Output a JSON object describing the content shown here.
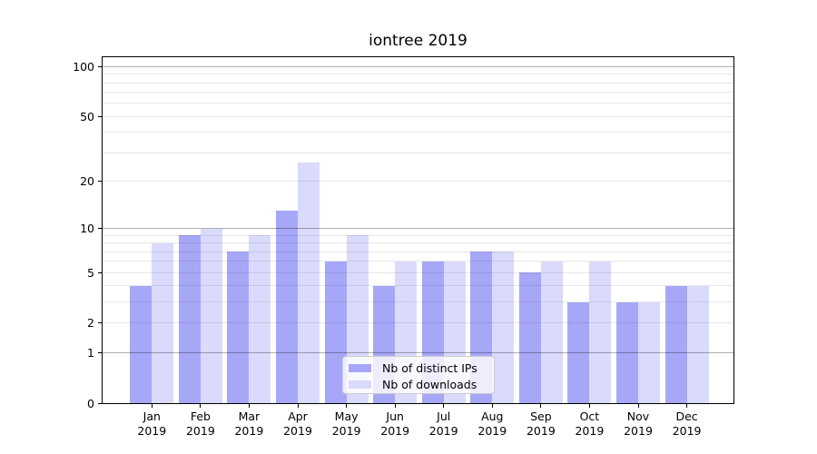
{
  "title": "iontree 2019",
  "colors": {
    "bar_distinct_ips": "#a7a7f8",
    "bar_downloads": "#dadafc",
    "grid_major_effective": "#b0b0b0",
    "grid_minor_effective": "#e8e8e8",
    "spine": "#000000",
    "background": "#ffffff",
    "legend_border": "#cccccc"
  },
  "chart_data": {
    "type": "bar",
    "title": "iontree 2019",
    "categories": [
      "Jan 2019",
      "Feb 2019",
      "Mar 2019",
      "Apr 2019",
      "May 2019",
      "Jun 2019",
      "Jul 2019",
      "Aug 2019",
      "Sep 2019",
      "Oct 2019",
      "Nov 2019",
      "Dec 2019"
    ],
    "x_months": [
      "Jan",
      "Feb",
      "Mar",
      "Apr",
      "May",
      "Jun",
      "Jul",
      "Aug",
      "Sep",
      "Oct",
      "Nov",
      "Dec"
    ],
    "x_year": "2019",
    "series": [
      {
        "name": "Nb of distinct IPs",
        "color": "#a7a7f8",
        "values": [
          4,
          9,
          7,
          13,
          6,
          4,
          6,
          7,
          5,
          3,
          3,
          4
        ]
      },
      {
        "name": "Nb of downloads",
        "color": "#dadafc",
        "values": [
          8,
          10,
          9,
          26,
          9,
          6,
          6,
          7,
          6,
          6,
          3,
          4
        ]
      }
    ],
    "xlabel": "",
    "ylabel": "",
    "yscale": "log1p",
    "ylim": [
      0,
      114
    ],
    "ytick_values": [
      100,
      50,
      20,
      10,
      5,
      2,
      1,
      0
    ],
    "ytick_labels": [
      "100",
      "50",
      "20",
      "10",
      "5",
      "2",
      "1",
      "0"
    ],
    "y_major_grid": [
      1,
      10,
      100
    ],
    "y_minor_grid": [
      2,
      3,
      4,
      5,
      6,
      7,
      8,
      9,
      20,
      30,
      40,
      50,
      60,
      70,
      80,
      90
    ],
    "grid": "on",
    "legend_position": "lower center-left inside axes"
  },
  "legend": {
    "item1": "Nb of distinct IPs",
    "item2": "Nb of downloads"
  }
}
